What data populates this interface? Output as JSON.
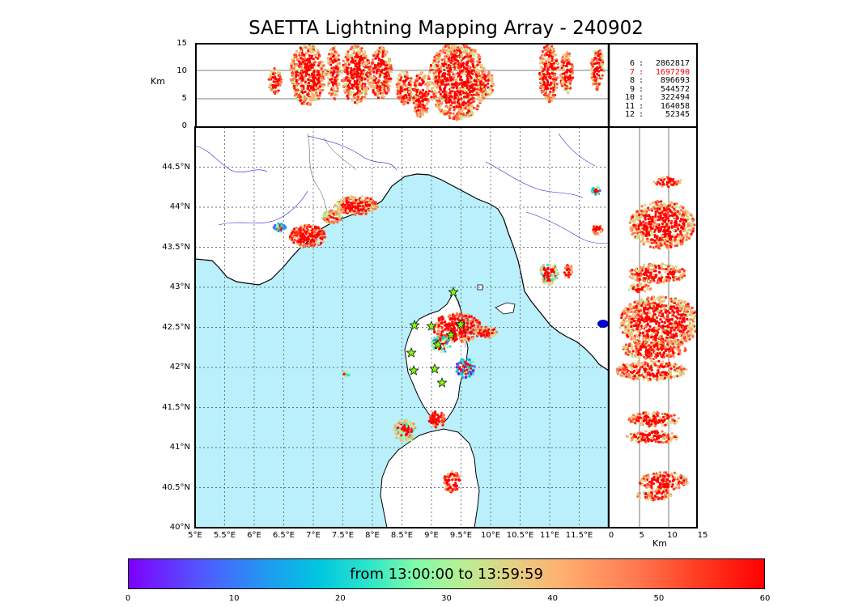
{
  "title": "SAETTA Lightning Mapping Array - 240902",
  "altitude_unit": "Km",
  "top_panel": {
    "y_ticks": [
      "0",
      "5",
      "10",
      "15"
    ]
  },
  "map": {
    "lon_ticks": [
      "5°E",
      "5.5°E",
      "6°E",
      "6.5°E",
      "7°E",
      "7.5°E",
      "8°E",
      "8.5°E",
      "9°E",
      "9.5°E",
      "10°E",
      "10.5°E",
      "11°E",
      "11.5°E"
    ],
    "lat_ticks": [
      "40°N",
      "40.5°N",
      "41°N",
      "41.5°N",
      "42°N",
      "42.5°N",
      "43°N",
      "43.5°N",
      "44°N",
      "44.5°N"
    ],
    "lon_range": [
      5,
      12
    ],
    "lat_range": [
      40,
      45
    ]
  },
  "side_panel": {
    "x_ticks": [
      "0",
      "5",
      "10",
      "15"
    ]
  },
  "counts": [
    {
      "level": "6",
      "value": "2862817",
      "highlight": false
    },
    {
      "level": "7",
      "value": "1697290",
      "highlight": true
    },
    {
      "level": "8",
      "value": "896693",
      "highlight": false
    },
    {
      "level": "9",
      "value": "544572",
      "highlight": false
    },
    {
      "level": "10",
      "value": "322494",
      "highlight": false
    },
    {
      "level": "11",
      "value": "164058",
      "highlight": false
    },
    {
      "level": "12",
      "value": "52345",
      "highlight": false
    }
  ],
  "colorbar": {
    "label": "from 13:00:00 to 13:59:59",
    "ticks": [
      "0",
      "10",
      "20",
      "30",
      "40",
      "50",
      "60"
    ],
    "range": [
      0,
      60
    ]
  },
  "colors": {
    "sea": "#b9f0fc",
    "land": "#ffffff",
    "highlight": "#ff0000",
    "station": "#7cfc00"
  },
  "stations_icon": "star-icon"
}
